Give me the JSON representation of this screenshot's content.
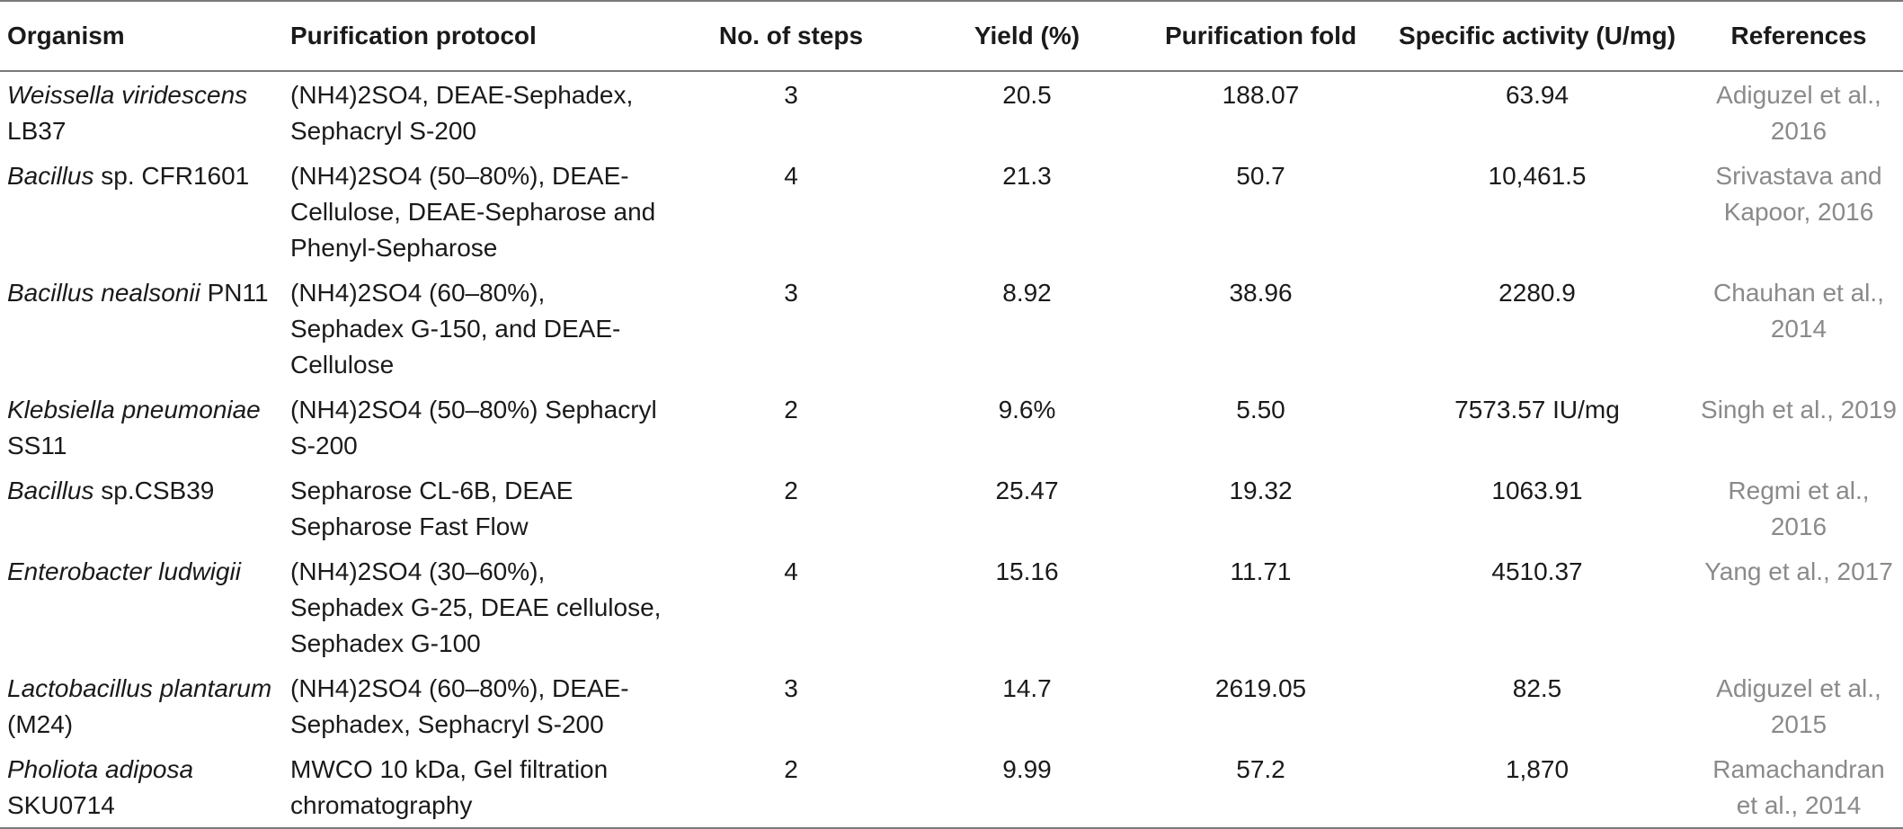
{
  "table": {
    "headers": {
      "organism": "Organism",
      "protocol": "Purification protocol",
      "steps": "No. of steps",
      "yield": "Yield (%)",
      "fold": "Purification fold",
      "activity": "Specific activity (U/mg)",
      "references": "References"
    },
    "rows": [
      {
        "organism_italic": "Weissella viridescens",
        "organism_rest": " LB37",
        "protocol": "(NH4)2SO4, DEAE-Sephadex, Sephacryl S-200",
        "steps": "3",
        "yield": "20.5",
        "fold": "188.07",
        "activity": "63.94",
        "reference": "Adiguzel et al., 2016"
      },
      {
        "organism_italic": "Bacillus",
        "organism_rest": " sp. CFR1601",
        "protocol": "(NH4)2SO4 (50–80%), DEAE-Cellulose, DEAE-Sepharose and Phenyl-Sepharose",
        "steps": "4",
        "yield": "21.3",
        "fold": "50.7",
        "activity": "10,461.5",
        "reference": "Srivastava and Kapoor, 2016"
      },
      {
        "organism_italic": "Bacillus nealsonii",
        "organism_rest": " PN11",
        "protocol": "(NH4)2SO4 (60–80%), Sephadex G-150, and DEAE-Cellulose",
        "steps": "3",
        "yield": "8.92",
        "fold": "38.96",
        "activity": "2280.9",
        "reference": "Chauhan et al., 2014"
      },
      {
        "organism_italic": "Klebsiella pneumoniae",
        "organism_rest": " SS11",
        "protocol": "(NH4)2SO4 (50–80%) Sephacryl S-200",
        "steps": "2",
        "yield": "9.6%",
        "fold": "5.50",
        "activity": "7573.57 IU/mg",
        "reference": "Singh et al., 2019"
      },
      {
        "organism_italic": "Bacillus",
        "organism_rest": " sp.CSB39",
        "protocol": "Sepharose CL-6B, DEAE Sepharose Fast Flow",
        "steps": "2",
        "yield": "25.47",
        "fold": "19.32",
        "activity": "1063.91",
        "reference": "Regmi et al., 2016"
      },
      {
        "organism_italic": "Enterobacter ludwigii",
        "organism_rest": "",
        "protocol": "(NH4)2SO4 (30–60%), Sephadex G-25, DEAE cellulose, Sephadex G-100",
        "steps": "4",
        "yield": "15.16",
        "fold": "11.71",
        "activity": "4510.37",
        "reference": "Yang et al., 2017"
      },
      {
        "organism_italic": "Lactobacillus plantarum",
        "organism_rest": " (M24)",
        "protocol": "(NH4)2SO4 (60–80%), DEAE-Sephadex, Sephacryl S-200",
        "steps": "3",
        "yield": "14.7",
        "fold": "2619.05",
        "activity": "82.5",
        "reference": "Adiguzel et al., 2015"
      },
      {
        "organism_italic": "Pholiota adiposa",
        "organism_rest": " SKU0714",
        "protocol": "MWCO 10 kDa, Gel filtration chromatography",
        "steps": "2",
        "yield": "9.99",
        "fold": "57.2",
        "activity": "1,870",
        "reference": "Ramachandran et al., 2014"
      }
    ]
  }
}
